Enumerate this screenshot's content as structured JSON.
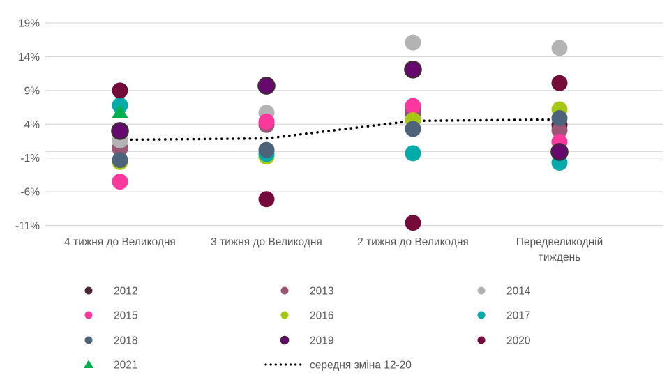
{
  "page": {
    "background": "#ffffff",
    "text_color": "#595959",
    "grid_color": "#d9d9d9",
    "zero_axis_color": "#c7c7c7"
  },
  "chart_data": {
    "type": "scatter",
    "title": "",
    "xlabel": "",
    "ylabel": "",
    "grid": true,
    "legend_position": "bottom",
    "ylim": [
      -11,
      19
    ],
    "y_ticks": [
      {
        "label": "19%",
        "value": 19
      },
      {
        "label": "14%",
        "value": 14
      },
      {
        "label": "9%",
        "value": 9
      },
      {
        "label": "4%",
        "value": 4
      },
      {
        "label": "-1%",
        "value": -1
      },
      {
        "label": "-6%",
        "value": -6
      },
      {
        "label": "-11%",
        "value": -11
      }
    ],
    "categories": [
      "4 тижня до Великодня",
      "3 тижня до Великодня",
      "2 тижня до Великодня",
      "Передвеликодній тиждень"
    ],
    "series": [
      {
        "name": "2012",
        "marker": "circle",
        "color": "#4a2535",
        "values": [
          0.5,
          9.6,
          5.8,
          3.9
        ]
      },
      {
        "name": "2013",
        "marker": "circle",
        "color": "#9d5576",
        "values": [
          0.4,
          3.9,
          5.6,
          3.1
        ]
      },
      {
        "name": "2014",
        "marker": "circle",
        "color": "#b3b3b3",
        "values": [
          1.6,
          5.7,
          16.1,
          15.3
        ]
      },
      {
        "name": "2015",
        "marker": "circle",
        "color": "#fb389c",
        "values": [
          -4.5,
          4.4,
          6.7,
          1.4
        ]
      },
      {
        "name": "2016",
        "marker": "circle",
        "color": "#a6c714",
        "values": [
          -1.6,
          -0.8,
          4.6,
          6.2
        ]
      },
      {
        "name": "2017",
        "marker": "circle",
        "color": "#00aba9",
        "values": [
          6.8,
          -0.4,
          -0.3,
          -1.7
        ]
      },
      {
        "name": "2018",
        "marker": "circle",
        "color": "#4d6379",
        "values": [
          -1.3,
          0.2,
          3.3,
          4.9
        ]
      },
      {
        "name": "2019",
        "marker": "circle",
        "color": "#67086f",
        "border": "#42283a",
        "values": [
          3.0,
          9.7,
          12.1,
          -0.1
        ]
      },
      {
        "name": "2020",
        "marker": "circle",
        "color": "#740b3a",
        "values": [
          9.0,
          -7.1,
          -10.6,
          10.1
        ]
      },
      {
        "name": "2021",
        "marker": "triangle",
        "color": "#00b050",
        "values": [
          5.9,
          null,
          null,
          null
        ]
      }
    ],
    "average_line": {
      "name": "середня зміна 12-20",
      "color": "#000000",
      "style": "dotted",
      "values": [
        1.7,
        1.9,
        4.5,
        4.7
      ]
    }
  }
}
